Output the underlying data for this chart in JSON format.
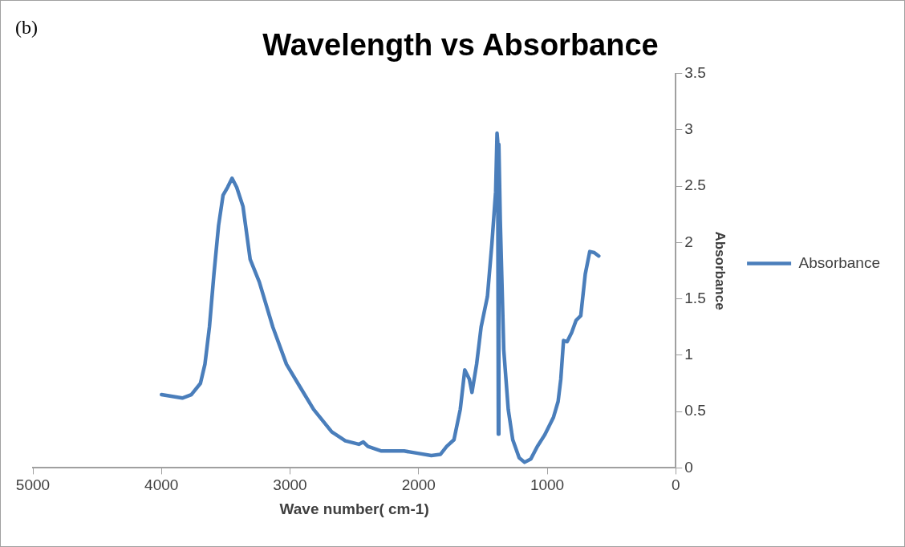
{
  "chart_data": {
    "type": "line",
    "title": "Wavelength vs Absorbance",
    "xlabel": "Wave number( cm-1)",
    "ylabel": "Absorbance",
    "annotations": [
      "(b)"
    ],
    "xlim": [
      5000,
      0
    ],
    "xticks": [
      5000,
      4000,
      3000,
      2000,
      1000,
      0
    ],
    "ylim": [
      0,
      3.5
    ],
    "yticks": [
      0,
      0.5,
      1,
      1.5,
      2,
      2.5,
      3,
      3.5
    ],
    "legend": "right",
    "marker": "none",
    "line_style": "solid",
    "series": [
      {
        "name": "Absorbance",
        "color": "#4a7ebb",
        "x": [
          4000,
          3838,
          3768,
          3697,
          3662,
          3627,
          3592,
          3556,
          3521,
          3486,
          3451,
          3415,
          3366,
          3310,
          3239,
          3134,
          3028,
          2923,
          2817,
          2676,
          2570,
          2465,
          2430,
          2394,
          2289,
          2113,
          2007,
          1901,
          1831,
          1782,
          1725,
          1676,
          1641,
          1606,
          1585,
          1549,
          1514,
          1465,
          1430,
          1401,
          1390,
          1385,
          1380,
          1376,
          1365,
          1338,
          1303,
          1268,
          1218,
          1176,
          1127,
          1077,
          1021,
          951,
          915,
          894,
          873,
          845,
          810,
          775,
          739,
          704,
          669,
          634,
          599
        ],
        "values": [
          0.65,
          0.62,
          0.65,
          0.75,
          0.92,
          1.25,
          1.72,
          2.15,
          2.42,
          2.49,
          2.57,
          2.49,
          2.32,
          1.85,
          1.65,
          1.25,
          0.92,
          0.72,
          0.52,
          0.32,
          0.24,
          0.21,
          0.23,
          0.19,
          0.15,
          0.15,
          0.13,
          0.11,
          0.12,
          0.19,
          0.25,
          0.52,
          0.87,
          0.79,
          0.67,
          0.92,
          1.25,
          1.52,
          1.99,
          2.45,
          2.97,
          2.9,
          0.3,
          2.87,
          2.2,
          1.05,
          0.52,
          0.25,
          0.09,
          0.05,
          0.08,
          0.19,
          0.29,
          0.45,
          0.59,
          0.79,
          1.13,
          1.12,
          1.2,
          1.31,
          1.35,
          1.72,
          1.92,
          1.91,
          1.88
        ]
      }
    ]
  }
}
